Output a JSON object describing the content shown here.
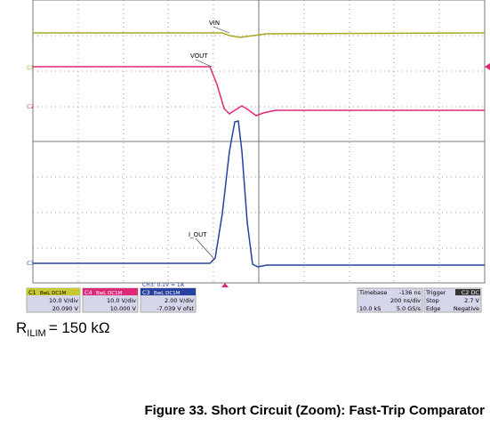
{
  "scope": {
    "trace_labels": {
      "vin": "VIN",
      "vout": "VOUT",
      "iout": "I_OUT"
    },
    "markers": [
      "C1",
      "C2",
      "C3"
    ],
    "channels": [
      {
        "name": "C1",
        "mode": "BwL DC1M",
        "scale": "10.0 V/div",
        "offset": "20.090 V"
      },
      {
        "name": "C4",
        "mode": "BwL DC1M",
        "scale": "10.0 V/div",
        "offset": "10.000 V"
      },
      {
        "name": "C3",
        "mode": "BwL DC1M",
        "scale": "2.00 V/div",
        "offset": "-7.039 V ofst"
      }
    ],
    "ch3_note": "CH3: 0.1V = 1A",
    "timebase": {
      "label": "Timebase",
      "delay": "-136 ns",
      "scale": "200 ns/div",
      "samples": "10.0 kS",
      "rate": "5.0 GS/s"
    },
    "trigger": {
      "label": "Trigger",
      "code": "C2 DC",
      "mode": "Stop",
      "level": "2.7 V",
      "type": "Edge",
      "slope": "Negative"
    }
  },
  "annotation": {
    "symbol": "R",
    "subscript": "ILIM",
    "value": "= 150 kΩ"
  },
  "caption": "Figure 33. Short Circuit (Zoom): Fast-Trip Comparator"
}
